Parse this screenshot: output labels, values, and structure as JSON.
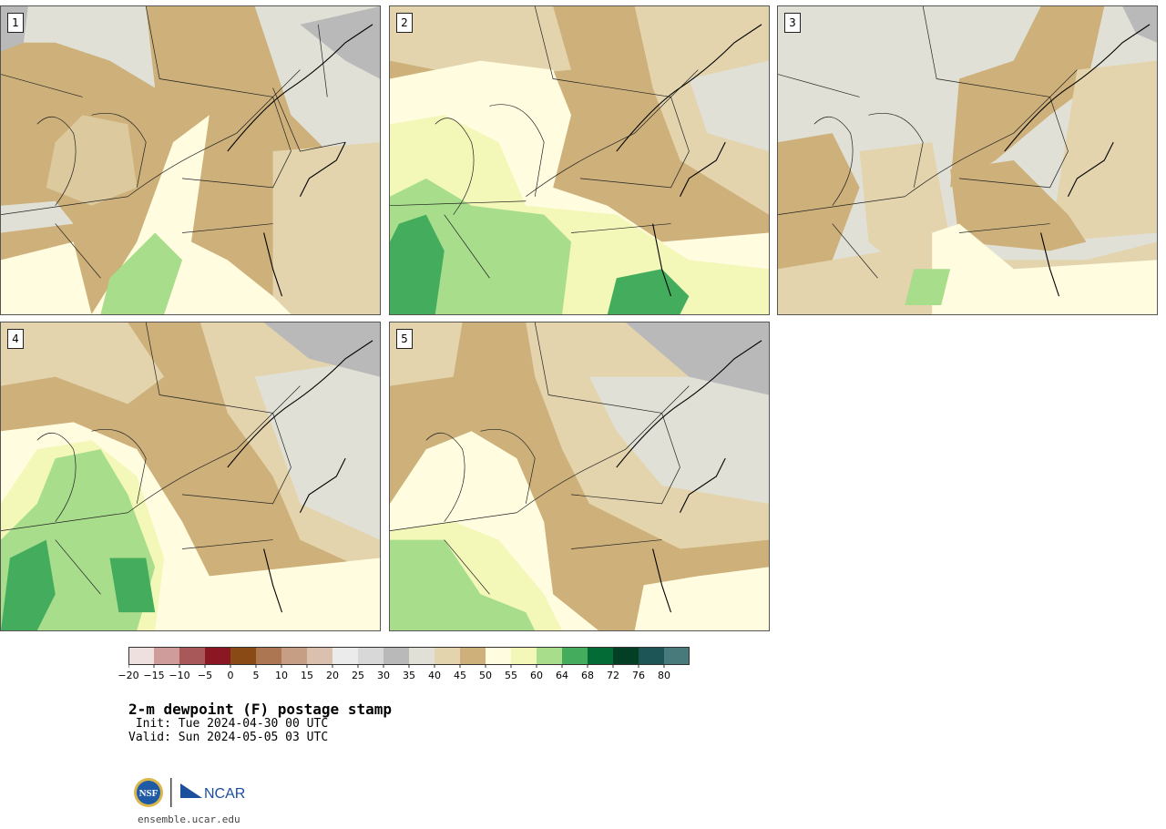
{
  "panels": [
    {
      "label": "1"
    },
    {
      "label": "2"
    },
    {
      "label": "3"
    },
    {
      "label": "4"
    },
    {
      "label": "5"
    }
  ],
  "colorbar": {
    "ticks": [
      "−20",
      "−15",
      "−10",
      "−5",
      "0",
      "5",
      "10",
      "15",
      "20",
      "25",
      "30",
      "35",
      "40",
      "45",
      "50",
      "55",
      "60",
      "64",
      "68",
      "72",
      "76",
      "80"
    ],
    "colors": [
      "#efe0e0",
      "#cf9b9b",
      "#a85858",
      "#8a1722",
      "#8a4a16",
      "#ad7652",
      "#c69e84",
      "#dcc0ae",
      "#ebebeb",
      "#d8d8d8",
      "#b9b9b9",
      "#e0e0d6",
      "#e3d4ad",
      "#cdb07a",
      "#fffce0",
      "#f3f8b9",
      "#a8dd8c",
      "#44ad5d",
      "#036b35",
      "#023f25",
      "#1d5456",
      "#487a7c"
    ]
  },
  "title": "2-m dewpoint (F) postage stamp",
  "init": " Init: Tue 2024-04-30 00 UTC",
  "valid": "Valid: Sun 2024-05-05 03 UTC",
  "logo": {
    "nsf": "NSF",
    "ncar": "NCAR"
  },
  "url": "ensemble.ucar.edu"
}
